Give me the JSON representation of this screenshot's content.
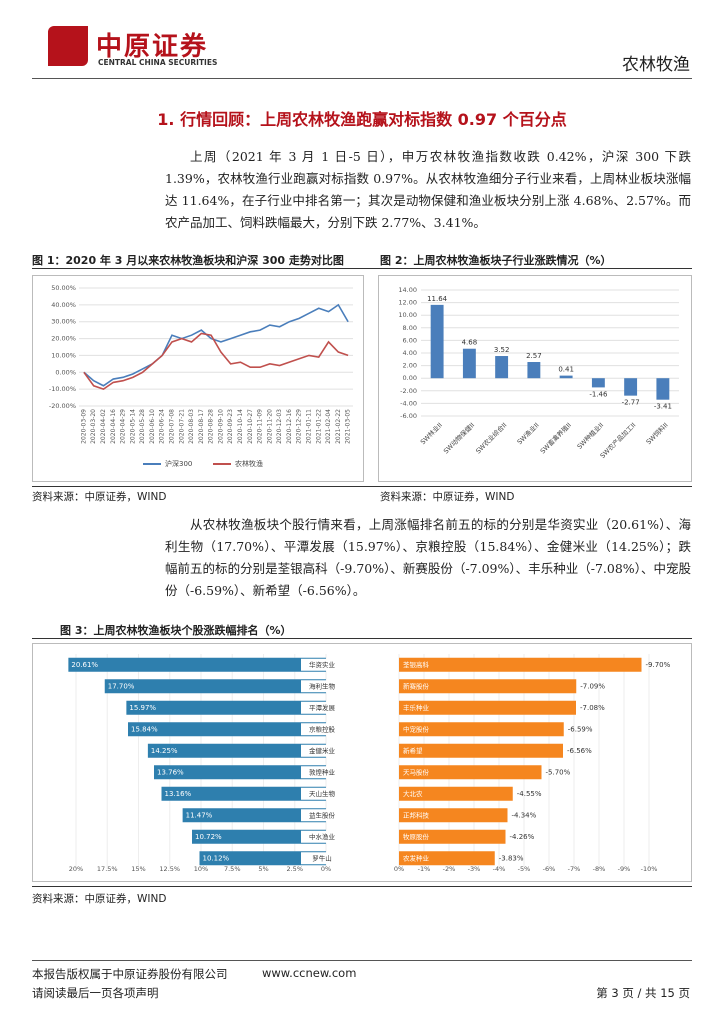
{
  "header": {
    "logo_cn": "中原证券",
    "logo_en": "CENTRAL CHINA SECURITIES",
    "section_name": "农林牧渔"
  },
  "heading": "1. 行情回顾：上周农林牧渔跑赢对标指数 0.97 个百分点",
  "paragraphs": [
    "上周（2021 年 3 月 1 日-5 日），申万农林牧渔指数收跌 0.42%，沪深 300 下跌 1.39%，农林牧渔行业跑赢对标指数 0.97%。从农林牧渔细分子行业来看，上周林业板块涨幅达 11.64%，在子行业中排名第一；其次是动物保健和渔业板块分别上涨 4.68%、2.57%。而农产品加工、饲料跌幅最大，分别下跌 2.77%、3.41%。",
    "从农林牧渔板块个股行情来看，上周涨幅排名前五的标的分别是华资实业（20.61%）、海利生物（17.70%）、平潭发展（15.97%）、京粮控股（15.84%）、金健米业（14.25%）；跌幅前五的标的分别是荃银高科（-9.70%）、新赛股份（-7.09%）、丰乐种业（-7.08%）、中宠股份（-6.59%）、新希望（-6.56%）。"
  ],
  "figures": [
    {
      "title": "图 1：2020 年 3 月以来农林牧渔板块和沪深 300 走势对比图",
      "source": "资料来源：中原证券，WIND",
      "chart_data": {
        "type": "line",
        "x": [
          "2020-03-09",
          "2020-03-20",
          "2020-04-02",
          "2020-04-16",
          "2020-04-29",
          "2020-05-14",
          "2020-05-28",
          "2020-06-10",
          "2020-06-24",
          "2020-07-08",
          "2020-07-21",
          "2020-08-03",
          "2020-08-17",
          "2020-08-28",
          "2020-09-10",
          "2020-09-23",
          "2020-10-14",
          "2020-10-27",
          "2020-11-09",
          "2020-11-20",
          "2020-12-03",
          "2020-12-16",
          "2020-12-29",
          "2021-01-11",
          "2021-01-22",
          "2021-02-04",
          "2021-02-22",
          "2021-03-05"
        ],
        "series": [
          {
            "name": "沪深300",
            "color": "#4a7ebb",
            "values": [
              0,
              -5,
              -8,
              -4,
              -3,
              -1,
              2,
              5,
              10,
              22,
              20,
              22,
              25,
              20,
              18,
              20,
              22,
              24,
              25,
              28,
              27,
              30,
              32,
              35,
              38,
              36,
              40,
              30
            ]
          },
          {
            "name": "农林牧渔",
            "color": "#c0504d",
            "values": [
              0,
              -8,
              -10,
              -6,
              -5,
              -3,
              0,
              5,
              10,
              18,
              20,
              18,
              23,
              22,
              12,
              5,
              6,
              3,
              3,
              5,
              4,
              6,
              8,
              10,
              9,
              18,
              12,
              10
            ]
          }
        ],
        "ylim": [
          -20,
          50
        ],
        "yticks": [
          {
            "value": -20,
            "label": "-20.00%"
          },
          {
            "value": -10,
            "label": "-10.00%"
          },
          {
            "value": 0,
            "label": "0.00%"
          },
          {
            "value": 10,
            "label": "10.00%"
          },
          {
            "value": 20,
            "label": "20.00%"
          },
          {
            "value": 30,
            "label": "30.00%"
          },
          {
            "value": 40,
            "label": "40.00%"
          },
          {
            "value": 50,
            "label": "50.00%"
          }
        ],
        "grid": true,
        "legend": "bottom"
      }
    },
    {
      "title": "图 2：上周农林牧渔板块子行业涨跌情况（%）",
      "source": "资料来源：中原证券，WIND",
      "chart_data": {
        "type": "bar",
        "categories": [
          "SW林业II",
          "SW动物保健II",
          "SW农业综合II",
          "SW渔业II",
          "SW畜禽养殖II",
          "SW种植业II",
          "SW农产品加工II",
          "SW饲料II"
        ],
        "values": [
          11.64,
          4.68,
          3.52,
          2.57,
          0.41,
          -1.46,
          -2.77,
          -3.41
        ],
        "color": "#4a7ebb",
        "ylim": [
          -6,
          14
        ],
        "yticks": [
          {
            "value": -6,
            "label": "-6.00"
          },
          {
            "value": -4,
            "label": "-4.00"
          },
          {
            "value": -2,
            "label": "-2.00"
          },
          {
            "value": 0,
            "label": "0.00"
          },
          {
            "value": 2,
            "label": "2.00"
          },
          {
            "value": 4,
            "label": "4.00"
          },
          {
            "value": 6,
            "label": "6.00"
          },
          {
            "value": 8,
            "label": "8.00"
          },
          {
            "value": 10,
            "label": "10.00"
          },
          {
            "value": 12,
            "label": "12.00"
          },
          {
            "value": 14,
            "label": "14.00"
          }
        ],
        "grid": true
      }
    },
    {
      "title": "图 3：上周农林牧渔板块个股涨跌幅排名（%）",
      "source": "资料来源：中原证券，WIND",
      "chart_data": [
        {
          "type": "hbar",
          "categories": [
            "华资实业",
            "海利生物",
            "平潭发展",
            "京粮控股",
            "金健米业",
            "敦煌种业",
            "天山生物",
            "益生股份",
            "中水渔业",
            "罗牛山"
          ],
          "values": [
            20.61,
            17.7,
            15.97,
            15.84,
            14.25,
            13.76,
            13.16,
            11.47,
            10.72,
            10.12
          ],
          "value_labels": [
            "20.61%",
            "17.70%",
            "15.97%",
            "15.84%",
            "14.25%",
            "13.76%",
            "13.16%",
            "11.47%",
            "10.72%",
            "10.12%"
          ],
          "color": "#2e7fae",
          "xlim": [
            0,
            21
          ],
          "xticks": [
            {
              "value": 20,
              "label": "20%"
            },
            {
              "value": 17.5,
              "label": "17.5%"
            },
            {
              "value": 15,
              "label": "15%"
            },
            {
              "value": 12.5,
              "label": "12.5%"
            },
            {
              "value": 10,
              "label": "10%"
            },
            {
              "value": 7.5,
              "label": "7.5%"
            },
            {
              "value": 5,
              "label": "5%"
            },
            {
              "value": 2.5,
              "label": "2.5%"
            },
            {
              "value": 0,
              "label": "0%"
            }
          ],
          "grid": true
        },
        {
          "type": "hbar",
          "categories": [
            "荃银高科",
            "新赛股份",
            "丰乐种业",
            "中宠股份",
            "新希望",
            "天马股份",
            "大北农",
            "正邦科技",
            "牧原股份",
            "农发种业"
          ],
          "values": [
            -9.7,
            -7.09,
            -7.08,
            -6.59,
            -6.56,
            -5.7,
            -4.55,
            -4.34,
            -4.26,
            -3.83
          ],
          "value_labels": [
            "-9.70%",
            "-7.09%",
            "-7.08%",
            "-6.59%",
            "-6.56%",
            "-5.70%",
            "-4.55%",
            "-4.34%",
            "-4.26%",
            "-3.83%"
          ],
          "color": "#f5861f",
          "xlim": [
            0,
            -11.5
          ],
          "xticks": [
            {
              "value": 0,
              "label": "0%"
            },
            {
              "value": -1,
              "label": "-1%"
            },
            {
              "value": -2,
              "label": "-2%"
            },
            {
              "value": -3,
              "label": "-3%"
            },
            {
              "value": -4,
              "label": "-4%"
            },
            {
              "value": -5,
              "label": "-5%"
            },
            {
              "value": -6,
              "label": "-6%"
            },
            {
              "value": -7,
              "label": "-7%"
            },
            {
              "value": -8,
              "label": "-8%"
            },
            {
              "value": -9,
              "label": "-9%"
            },
            {
              "value": -10,
              "label": "-10%"
            }
          ],
          "grid": true
        }
      ]
    }
  ],
  "footer": {
    "copyright": "本报告版权属于中原证券股份有限公司",
    "website": "www.ccnew.com",
    "disclaimer": "请阅读最后一页各项声明",
    "page": "第 3 页 / 共 15 页"
  }
}
